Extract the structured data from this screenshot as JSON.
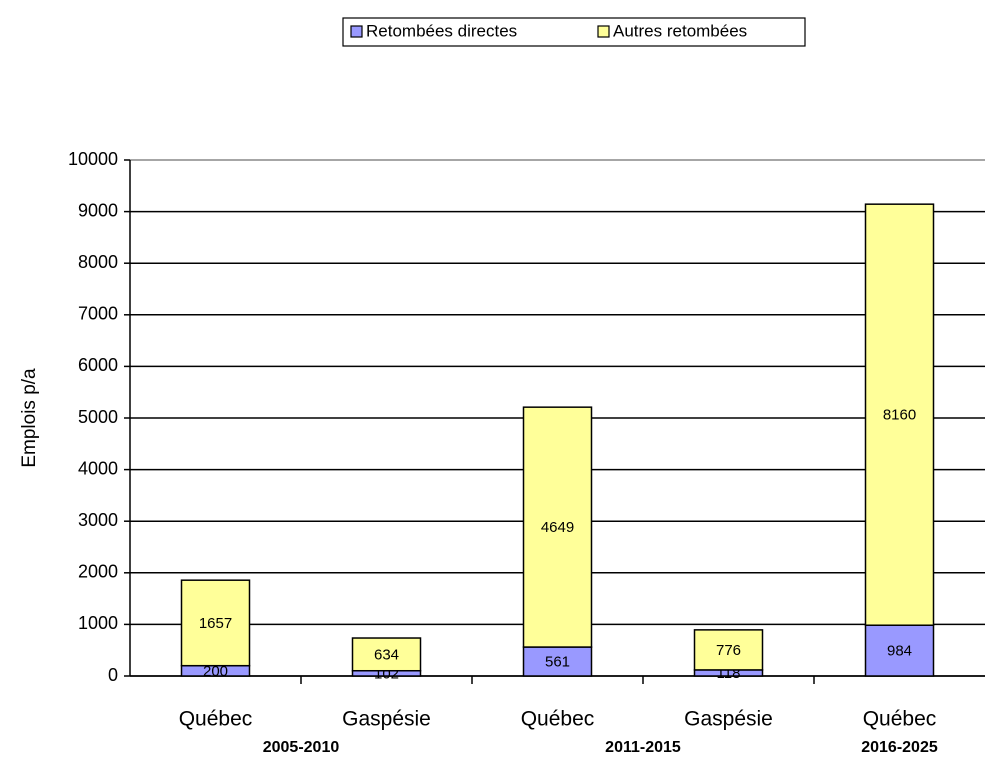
{
  "chart_data": {
    "type": "stacked_bar",
    "ylabel": "Emplois p/a",
    "categories": [
      "Québec",
      "Gaspésie",
      "Québec",
      "Gaspésie",
      "Québec"
    ],
    "groups": [
      {
        "label": "2005-2010",
        "span": 2
      },
      {
        "label": "2011-2015",
        "span": 2
      },
      {
        "label": "2016-2025",
        "span": 1
      }
    ],
    "series": [
      {
        "name": "Retombées directes",
        "color": "#9999ff",
        "values": [
          200,
          102,
          561,
          118,
          984
        ]
      },
      {
        "name": "Autres retombées",
        "color": "#ffff99",
        "values": [
          1657,
          634,
          4649,
          776,
          8160
        ]
      }
    ],
    "ylim": [
      0,
      10000
    ],
    "yticks": [
      0,
      1000,
      2000,
      3000,
      4000,
      5000,
      6000,
      7000,
      8000,
      9000,
      10000
    ],
    "grid": true,
    "legend": "top"
  }
}
